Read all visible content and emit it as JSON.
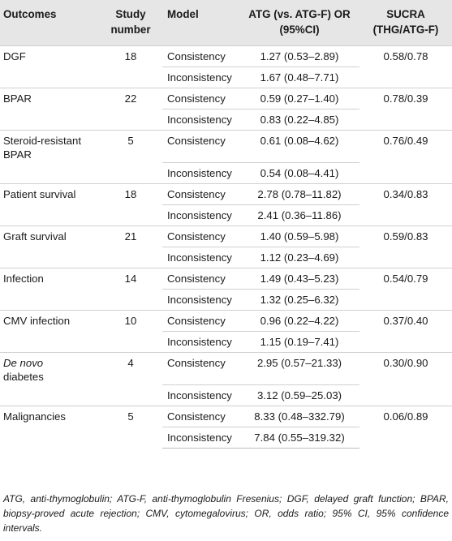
{
  "headers": {
    "outcomes": "Outcomes",
    "study_number": "Study number",
    "model": "Model",
    "atg": "ATG (vs. ATG-F) OR (95%CI)",
    "sucra": "SUCRA (THG/ATG-F)"
  },
  "rows": [
    {
      "outcome": "DGF",
      "study_number": "18",
      "sucra": "0.58/0.78",
      "consistency": "1.27 (0.53–2.89)",
      "inconsistency": "1.67 (0.48–7.71)"
    },
    {
      "outcome": "BPAR",
      "study_number": "22",
      "sucra": "0.78/0.39",
      "consistency": "0.59 (0.27–1.40)",
      "inconsistency": "0.83 (0.22–4.85)"
    },
    {
      "outcome": "Steroid-resistant BPAR",
      "study_number": "5",
      "sucra": "0.76/0.49",
      "consistency": "0.61 (0.08–4.62)",
      "inconsistency": "0.54 (0.08–4.41)"
    },
    {
      "outcome": "Patient survival",
      "study_number": "18",
      "sucra": "0.34/0.83",
      "consistency": "2.78 (0.78–11.82)",
      "inconsistency": "2.41 (0.36–11.86)"
    },
    {
      "outcome": "Graft survival",
      "study_number": "21",
      "sucra": "0.59/0.83",
      "consistency": "1.40 (0.59–5.98)",
      "inconsistency": "1.12 (0.23–4.69)"
    },
    {
      "outcome": "Infection",
      "study_number": "14",
      "sucra": "0.54/0.79",
      "consistency": "1.49 (0.43–5.23)",
      "inconsistency": "1.32 (0.25–6.32)"
    },
    {
      "outcome": "CMV infection",
      "study_number": "10",
      "sucra": "0.37/0.40",
      "consistency": "0.96 (0.22–4.22)",
      "inconsistency": "1.15 (0.19–7.41)"
    },
    {
      "outcome_italic": "De novo",
      "outcome_rest": "diabetes",
      "study_number": "4",
      "sucra": "0.30/0.90",
      "consistency": "2.95 (0.57–21.33)",
      "inconsistency": "3.12 (0.59–25.03)"
    },
    {
      "outcome": "Malignancies",
      "study_number": "5",
      "sucra": "0.06/0.89",
      "consistency": "8.33 (0.48–332.79)",
      "inconsistency": "7.84 (0.55–319.32)"
    }
  ],
  "model_labels": {
    "consistency": "Consistency",
    "inconsistency": "Inconsistency"
  },
  "footnote": "ATG, anti-thymoglobulin; ATG-F, anti-thymoglobulin Fresenius; DGF, delayed graft function; BPAR, biopsy-proved acute rejection; CMV, cytomegalovirus; OR, odds ratio; 95% CI, 95% confidence intervals."
}
